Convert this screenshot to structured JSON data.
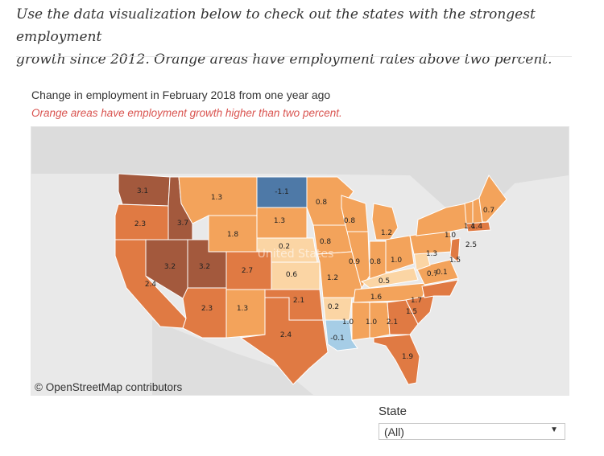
{
  "intro": {
    "line1": "Use the data visualization below to check out the states with the strongest employment",
    "line2": "growth since 2012.  Orange areas have employment rates above two percent."
  },
  "viz": {
    "title": "Change in employment in February 2018 from one year ago",
    "subtitle": "Orange areas have employment growth higher than two percent.",
    "attribution": "© OpenStreetMap contributors",
    "watermark": "United States"
  },
  "filter": {
    "label": "State",
    "value": "(All)"
  },
  "colors": {
    "background": "#e9e9e9",
    "strong_orange": "#a3593d",
    "orange": "#e07a43",
    "light_orange": "#f3a35b",
    "pale": "#fbd5a4",
    "blue": "#4e79a7",
    "light_blue": "#a6cde6",
    "subtitle_red": "#d9534f"
  },
  "states": [
    {
      "name": "WA",
      "value": "3.1"
    },
    {
      "name": "OR",
      "value": "2.3"
    },
    {
      "name": "CA",
      "value": "2.4"
    },
    {
      "name": "ID",
      "value": "3.7"
    },
    {
      "name": "NV",
      "value": "3.2"
    },
    {
      "name": "UT",
      "value": "3.2"
    },
    {
      "name": "AZ",
      "value": "2.3"
    },
    {
      "name": "MT",
      "value": "1.3"
    },
    {
      "name": "WY",
      "value": "1.8"
    },
    {
      "name": "CO",
      "value": "2.7"
    },
    {
      "name": "NM",
      "value": "1.3"
    },
    {
      "name": "ND",
      "value": "-1.1"
    },
    {
      "name": "SD",
      "value": "1.3"
    },
    {
      "name": "NE",
      "value": "0.2"
    },
    {
      "name": "KS",
      "value": "0.6"
    },
    {
      "name": "OK",
      "value": "2.1"
    },
    {
      "name": "TX",
      "value": "2.4"
    },
    {
      "name": "MN",
      "value": "0.8"
    },
    {
      "name": "IA",
      "value": "0.8"
    },
    {
      "name": "MO",
      "value": "1.2"
    },
    {
      "name": "AR",
      "value": "0.2"
    },
    {
      "name": "LA",
      "value": "-0.1"
    },
    {
      "name": "WI",
      "value": "0.8"
    },
    {
      "name": "IL",
      "value": "0.9"
    },
    {
      "name": "MI",
      "value": "1.2"
    },
    {
      "name": "IN",
      "value": "0.8"
    },
    {
      "name": "OH",
      "value": "1.0"
    },
    {
      "name": "KY",
      "value": "0.5"
    },
    {
      "name": "TN",
      "value": "1.6"
    },
    {
      "name": "MS",
      "value": "1.0"
    },
    {
      "name": "AL",
      "value": "1.0"
    },
    {
      "name": "GA",
      "value": "2.1"
    },
    {
      "name": "FL",
      "value": "1.9"
    },
    {
      "name": "SC",
      "value": "1.5"
    },
    {
      "name": "NC",
      "value": "1.7"
    },
    {
      "name": "VA",
      "value": "0.7"
    },
    {
      "name": "WV",
      "value": "-0.1"
    },
    {
      "name": "PA",
      "value": "1.3"
    },
    {
      "name": "NY",
      "value": "1.0"
    },
    {
      "name": "NJ",
      "value": "1.5"
    },
    {
      "name": "VT",
      "value": "1.4"
    },
    {
      "name": "NH",
      "value": "1.4"
    },
    {
      "name": "ME",
      "value": "0.7"
    },
    {
      "name": "MA",
      "value": "2.5"
    }
  ]
}
